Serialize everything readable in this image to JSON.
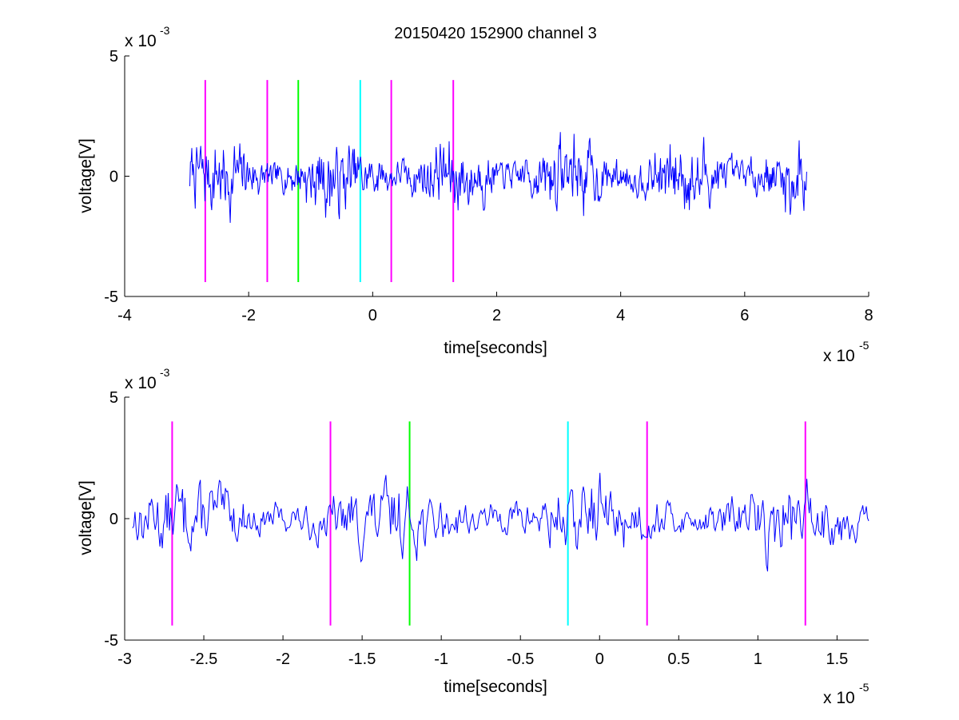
{
  "figure_title": "20150420 152900 channel 3",
  "chart_data": [
    {
      "type": "line",
      "title": "20150420 152900 channel 3",
      "xlabel": "time[seconds]",
      "ylabel": "voltage[V]",
      "x_multiplier": "x 10",
      "x_exponent": "-5",
      "y_multiplier": "x 10",
      "y_exponent": "-3",
      "xlim": [
        -4,
        8
      ],
      "ylim": [
        -5,
        5
      ],
      "xticks": [
        "-4",
        "-2",
        "0",
        "2",
        "4",
        "6",
        "8"
      ],
      "xtick_values": [
        -4,
        -2,
        0,
        2,
        4,
        6,
        8
      ],
      "yticks": [
        "-5",
        "0",
        "5"
      ],
      "ytick_values": [
        -5,
        0,
        5
      ],
      "signal": {
        "color": "#0000ff",
        "x_start": -2.95,
        "x_end": 7.0,
        "n_points": 900,
        "seed": 7,
        "amplitude": 1.1
      },
      "markers": [
        {
          "x": -2.7,
          "color": "#ff00ff",
          "y_top": 4.0,
          "y_bottom": -4.4
        },
        {
          "x": -1.7,
          "color": "#ff00ff",
          "y_top": 4.0,
          "y_bottom": -4.4
        },
        {
          "x": -1.2,
          "color": "#00ff00",
          "y_top": 4.0,
          "y_bottom": -4.4
        },
        {
          "x": -0.2,
          "color": "#00ffff",
          "y_top": 4.0,
          "y_bottom": -4.4
        },
        {
          "x": 0.3,
          "color": "#ff00ff",
          "y_top": 4.0,
          "y_bottom": -4.4
        },
        {
          "x": 1.3,
          "color": "#ff00ff",
          "y_top": 4.0,
          "y_bottom": -4.4
        }
      ]
    },
    {
      "type": "line",
      "title": "",
      "xlabel": "time[seconds]",
      "ylabel": "voltage[V]",
      "x_multiplier": "x 10",
      "x_exponent": "-5",
      "y_multiplier": "x 10",
      "y_exponent": "-3",
      "xlim": [
        -3.0,
        1.7
      ],
      "ylim": [
        -5,
        5
      ],
      "xticks": [
        "-3",
        "-2.5",
        "-2",
        "-1.5",
        "-1",
        "-0.5",
        "0",
        "0.5",
        "1",
        "1.5"
      ],
      "xtick_values": [
        -3,
        -2.5,
        -2,
        -1.5,
        -1,
        -0.5,
        0,
        0.5,
        1,
        1.5
      ],
      "yticks": [
        "-5",
        "0",
        "5"
      ],
      "ytick_values": [
        -5,
        0,
        5
      ],
      "signal": {
        "color": "#0000ff",
        "x_start": -2.95,
        "x_end": 1.7,
        "n_points": 620,
        "seed": 13,
        "amplitude": 1.05
      },
      "markers": [
        {
          "x": -2.7,
          "color": "#ff00ff",
          "y_top": 4.0,
          "y_bottom": -4.4
        },
        {
          "x": -1.7,
          "color": "#ff00ff",
          "y_top": 4.0,
          "y_bottom": -4.4
        },
        {
          "x": -1.2,
          "color": "#00ff00",
          "y_top": 4.0,
          "y_bottom": -4.4
        },
        {
          "x": -0.2,
          "color": "#00ffff",
          "y_top": 4.0,
          "y_bottom": -4.4
        },
        {
          "x": 0.3,
          "color": "#ff00ff",
          "y_top": 4.0,
          "y_bottom": -4.4
        },
        {
          "x": 1.3,
          "color": "#ff00ff",
          "y_top": 4.0,
          "y_bottom": -4.4
        }
      ]
    }
  ]
}
